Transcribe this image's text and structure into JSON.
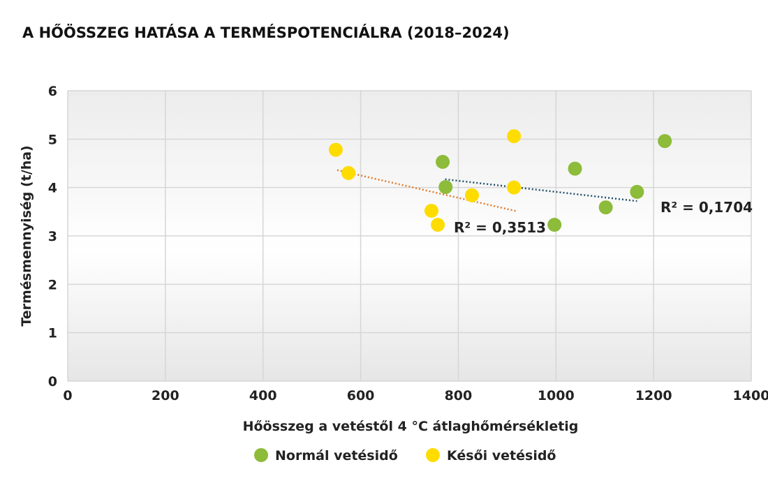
{
  "chart_data": {
    "type": "scatter",
    "title": "A HŐÖSSZEG HATÁSA A TERMÉSPOTENCIÁLRA (2018–2024)",
    "xlabel": "Hőösszeg a vetéstől 4 °C átlaghőmérsékletig",
    "ylabel": "Termésmennyiség (t/ha)",
    "xlim": [
      0,
      1400
    ],
    "ylim": [
      0,
      6
    ],
    "xticks": [
      "0",
      "200",
      "400",
      "600",
      "800",
      "1000",
      "1200",
      "1400"
    ],
    "yticks": [
      "0",
      "1",
      "2",
      "3",
      "4",
      "5",
      "6"
    ],
    "grid": true,
    "legend_position": "bottom",
    "series": [
      {
        "name": "Normál vetésidő",
        "color": "#8dbb3a",
        "points": [
          [
            768,
            4.53
          ],
          [
            774,
            4.01
          ],
          [
            1039,
            4.39
          ],
          [
            997,
            3.23
          ],
          [
            1102,
            3.59
          ],
          [
            1166,
            3.91
          ],
          [
            1223,
            4.96
          ]
        ],
        "trendline": {
          "x": [
            773,
            1166
          ],
          "y": [
            4.17,
            3.72
          ],
          "color": "#1f4f6a",
          "r2_label": "R² = 0,1704"
        }
      },
      {
        "name": "Késői vetésidő",
        "color": "#fedc00",
        "points": [
          [
            549,
            4.78
          ],
          [
            575,
            4.3
          ],
          [
            914,
            5.06
          ],
          [
            914,
            4.0
          ],
          [
            828,
            3.84
          ],
          [
            745,
            3.52
          ],
          [
            758,
            3.23
          ]
        ],
        "trendline": {
          "x": [
            552,
            920
          ],
          "y": [
            4.36,
            3.51
          ],
          "color": "#e07a2a",
          "r2_label": "R² = 0,3513"
        }
      }
    ]
  }
}
